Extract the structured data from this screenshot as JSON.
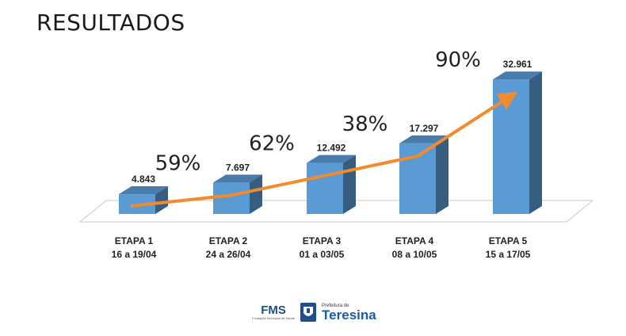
{
  "slide": {
    "title": "RESULTADOS"
  },
  "chart_data": {
    "type": "bar",
    "categories": [
      {
        "line1": "ETAPA 1",
        "line2": "16 a 19/04"
      },
      {
        "line1": "ETAPA 2",
        "line2": "24 a 26/04"
      },
      {
        "line1": "ETAPA 3",
        "line2": "01 a 03/05"
      },
      {
        "line1": "ETAPA 4",
        "line2": "08 a 10/05"
      },
      {
        "line1": "ETAPA 5",
        "line2": "15 a 17/05"
      }
    ],
    "values": [
      4843,
      7697,
      12492,
      17297,
      32961
    ],
    "value_labels": [
      "4.843",
      "7.697",
      "12.492",
      "17.297",
      "32.961"
    ],
    "growth_labels": [
      "59%",
      "62%",
      "38%",
      "90%"
    ],
    "bar_color": "#5b9bd5",
    "trend_color": "#f28a2e",
    "trend_arrow": true,
    "grid": false
  },
  "footer": {
    "fms": "FMS",
    "fms_sub": "Fundação Municipal de Saúde",
    "prefeitura": "Prefeitura de",
    "city": "Teresina"
  }
}
